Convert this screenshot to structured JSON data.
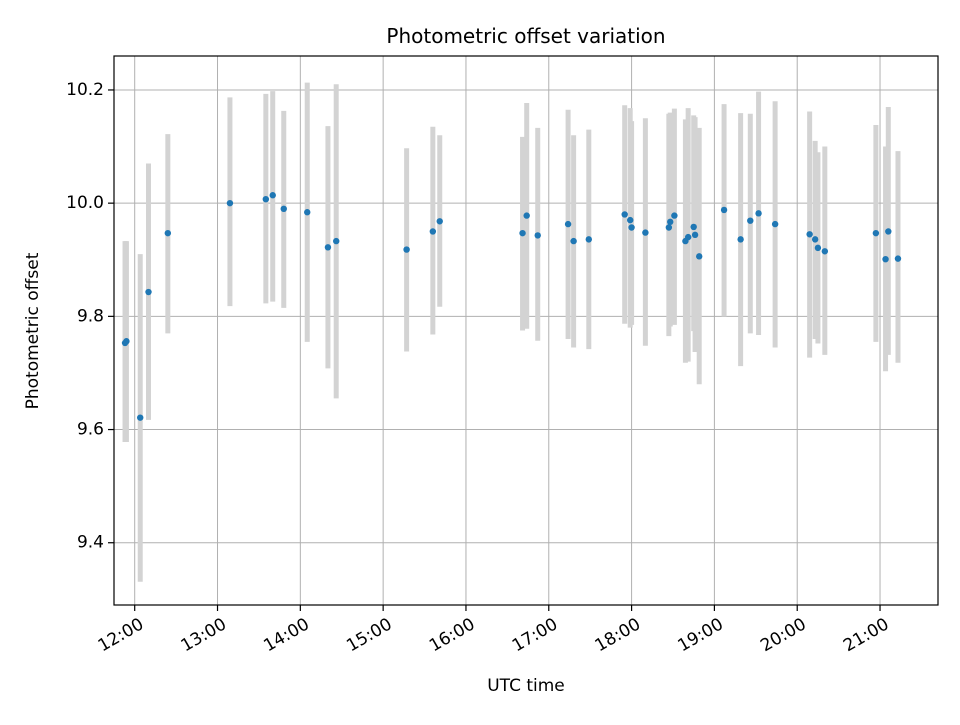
{
  "chart_data": {
    "type": "scatter",
    "title": "Photometric offset variation",
    "xlabel": "UTC time",
    "ylabel": "Photometric offset",
    "x_ticks": [
      "12:00",
      "13:00",
      "14:00",
      "15:00",
      "16:00",
      "17:00",
      "18:00",
      "19:00",
      "20:00",
      "21:00"
    ],
    "y_ticks": [
      "9.4",
      "9.6",
      "9.8",
      "10.0",
      "10.2"
    ],
    "xlim": [
      "11:45",
      "21:42"
    ],
    "ylim": [
      9.29,
      10.26
    ],
    "grid": true,
    "colors": {
      "point": "#1f77b4",
      "error_bar": "#d3d3d3",
      "grid": "#b0b0b0"
    },
    "series": [
      {
        "x": [
          "11:53",
          "11:54",
          "12:04",
          "12:10",
          "12:24",
          "13:09",
          "13:35",
          "13:40",
          "13:48",
          "14:05",
          "14:20",
          "14:26",
          "15:17",
          "15:36",
          "15:41",
          "16:41",
          "16:44",
          "16:52",
          "17:14",
          "17:18",
          "17:29",
          "17:55",
          "17:59",
          "18:00",
          "18:10",
          "18:27",
          "18:28",
          "18:31",
          "18:39",
          "18:41",
          "18:45",
          "18:46",
          "18:49",
          "19:07",
          "19:19",
          "19:26",
          "19:32",
          "19:44",
          "20:09",
          "20:13",
          "20:15",
          "20:20",
          "20:57",
          "21:04",
          "21:06",
          "21:13"
        ],
        "y": [
          9.753,
          9.756,
          9.621,
          9.843,
          9.947,
          10.0,
          10.007,
          10.014,
          9.99,
          9.984,
          9.922,
          9.933,
          9.918,
          9.95,
          9.968,
          9.947,
          9.978,
          9.943,
          9.963,
          9.933,
          9.936,
          9.98,
          9.97,
          9.957,
          9.948,
          9.957,
          9.967,
          9.978,
          9.933,
          9.94,
          9.958,
          9.944,
          9.906,
          9.988,
          9.936,
          9.969,
          9.982,
          9.963,
          9.945,
          9.936,
          9.921,
          9.915,
          9.947,
          9.901,
          9.95,
          9.902
        ],
        "y_low": [
          9.578,
          9.578,
          9.331,
          9.617,
          9.77,
          9.818,
          9.823,
          9.826,
          9.815,
          9.755,
          9.708,
          9.655,
          9.738,
          9.768,
          9.817,
          9.775,
          9.778,
          9.757,
          9.76,
          9.745,
          9.742,
          9.787,
          9.78,
          9.785,
          9.748,
          9.765,
          9.782,
          9.785,
          9.718,
          9.72,
          9.774,
          9.737,
          9.68,
          9.8,
          9.712,
          9.77,
          9.767,
          9.745,
          9.727,
          9.76,
          9.752,
          9.732,
          9.755,
          9.703,
          9.732,
          9.718
        ],
        "y_high": [
          9.933,
          9.933,
          9.91,
          10.07,
          10.122,
          10.187,
          10.193,
          10.198,
          10.163,
          10.213,
          10.136,
          10.21,
          10.097,
          10.135,
          10.12,
          10.117,
          10.177,
          10.133,
          10.165,
          10.12,
          10.13,
          10.173,
          10.168,
          10.145,
          10.15,
          10.158,
          10.16,
          10.167,
          10.148,
          10.168,
          10.155,
          10.152,
          10.133,
          10.175,
          10.159,
          10.158,
          10.197,
          10.18,
          10.162,
          10.11,
          10.09,
          10.1,
          10.138,
          10.1,
          10.17,
          10.092
        ]
      }
    ]
  }
}
